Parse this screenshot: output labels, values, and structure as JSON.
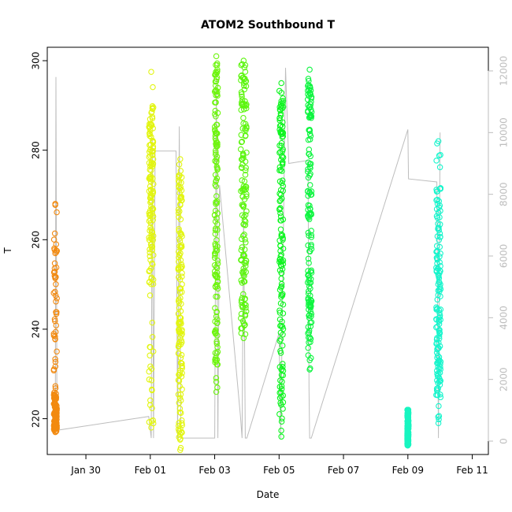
{
  "chart_data": {
    "type": "scatter",
    "title": "ATOM2 Southbound T",
    "xlabel": "Date",
    "ylabel": "T",
    "x_ticks": [
      "Jan 30",
      "Feb 01",
      "Feb 03",
      "Feb 05",
      "Feb 07",
      "Feb 09",
      "Feb 11"
    ],
    "y_ticks": [
      220,
      240,
      260,
      280,
      300
    ],
    "y_right_ticks": [
      0,
      2000,
      4000,
      6000,
      8000,
      10000,
      12000
    ],
    "ylim": [
      212,
      303
    ],
    "y_right_lim": [
      0,
      12500
    ],
    "x_range_days_from_jan30": [
      -1.2,
      12.5
    ],
    "series": [
      {
        "color": "#F28A10",
        "x_center": -0.95,
        "spread": 0.05,
        "ymin": 217,
        "ymax": 268,
        "dense_lo": 217,
        "dense_hi": 226
      },
      {
        "color": "#E2F511",
        "x_center": 2.03,
        "spread": 0.07,
        "ymin": 218,
        "ymax": 297.5,
        "dense_lo": 250,
        "dense_hi": 290
      },
      {
        "color": "#E2F511",
        "x_center": 2.93,
        "spread": 0.06,
        "ymin": 213,
        "ymax": 278,
        "dense_lo": 215,
        "dense_hi": 275
      },
      {
        "color": "#6EF50F",
        "x_center": 4.05,
        "spread": 0.05,
        "ymin": 226,
        "ymax": 301,
        "dense_lo": 232,
        "dense_hi": 300
      },
      {
        "color": "#5CF50F",
        "x_center": 4.9,
        "spread": 0.09,
        "ymin": 238,
        "ymax": 300,
        "dense_lo": 240,
        "dense_hi": 299
      },
      {
        "color": "#0EF520",
        "x_center": 6.07,
        "spread": 0.06,
        "ymin": 216,
        "ymax": 295,
        "dense_lo": 222,
        "dense_hi": 292
      },
      {
        "color": "#0EF540",
        "x_center": 6.95,
        "spread": 0.06,
        "ymin": 231,
        "ymax": 298,
        "dense_lo": 235,
        "dense_hi": 296
      },
      {
        "color": "#18F5C0",
        "x_center": 10.0,
        "spread": 0.02,
        "ymin": 214,
        "ymax": 222,
        "dense_lo": 214,
        "dense_hi": 222
      },
      {
        "color": "#16F5CC",
        "x_center": 10.95,
        "spread": 0.07,
        "ymin": 219,
        "ymax": 282,
        "dense_lo": 225,
        "dense_hi": 272
      }
    ],
    "altitude_line": [
      [
        -0.95,
        350
      ],
      [
        -0.93,
        11800
      ],
      [
        -0.9,
        350
      ],
      [
        1.95,
        800
      ],
      [
        2.03,
        100
      ],
      [
        2.06,
        9800
      ],
      [
        2.1,
        100
      ],
      [
        2.15,
        9400
      ],
      [
        2.8,
        9400
      ],
      [
        2.85,
        100
      ],
      [
        2.9,
        10200
      ],
      [
        2.95,
        100
      ],
      [
        3.0,
        100
      ],
      [
        3.95,
        100
      ],
      [
        4.0,
        100
      ],
      [
        4.05,
        12000
      ],
      [
        4.1,
        100
      ],
      [
        4.15,
        8300
      ],
      [
        4.8,
        800
      ],
      [
        4.85,
        100
      ],
      [
        4.9,
        7500
      ],
      [
        4.95,
        100
      ],
      [
        5.0,
        100
      ],
      [
        6.0,
        3500
      ],
      [
        6.05,
        100
      ],
      [
        6.2,
        12100
      ],
      [
        6.3,
        9000
      ],
      [
        6.9,
        9100
      ],
      [
        6.93,
        1700
      ],
      [
        6.95,
        100
      ],
      [
        7.0,
        100
      ],
      [
        10.0,
        10100
      ],
      [
        10.02,
        8500
      ],
      [
        10.9,
        8400
      ],
      [
        10.95,
        100
      ],
      [
        11.0,
        10000
      ]
    ]
  }
}
